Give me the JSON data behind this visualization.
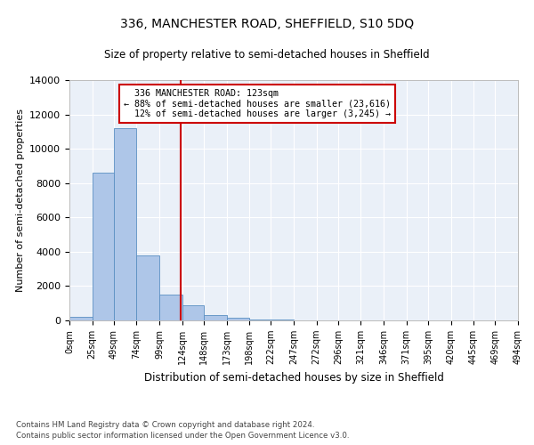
{
  "title": "336, MANCHESTER ROAD, SHEFFIELD, S10 5DQ",
  "subtitle": "Size of property relative to semi-detached houses in Sheffield",
  "xlabel": "Distribution of semi-detached houses by size in Sheffield",
  "ylabel": "Number of semi-detached properties",
  "property_label": "336 MANCHESTER ROAD: 123sqm",
  "pct_smaller": 88,
  "count_smaller": "23,616",
  "pct_larger": 12,
  "count_larger": "3,245",
  "bin_edges": [
    0,
    25,
    49,
    74,
    99,
    124,
    148,
    173,
    198,
    222,
    247,
    272,
    296,
    321,
    346,
    371,
    395,
    420,
    445,
    469,
    494
  ],
  "bin_labels": [
    "0sqm",
    "25sqm",
    "49sqm",
    "74sqm",
    "99sqm",
    "124sqm",
    "148sqm",
    "173sqm",
    "198sqm",
    "222sqm",
    "247sqm",
    "272sqm",
    "296sqm",
    "321sqm",
    "346sqm",
    "371sqm",
    "395sqm",
    "420sqm",
    "445sqm",
    "469sqm",
    "494sqm"
  ],
  "counts": [
    200,
    8600,
    11200,
    3800,
    1500,
    900,
    300,
    150,
    50,
    30,
    10,
    0,
    0,
    0,
    0,
    0,
    0,
    0,
    0,
    0
  ],
  "bar_color": "#aec6e8",
  "bar_edge_color": "#5a8fc2",
  "vline_color": "#cc0000",
  "vline_x": 123,
  "bg_color": "#eaf0f8",
  "grid_color": "#ffffff",
  "ylim": [
    0,
    14000
  ],
  "yticks": [
    0,
    2000,
    4000,
    6000,
    8000,
    10000,
    12000,
    14000
  ],
  "footer1": "Contains HM Land Registry data © Crown copyright and database right 2024.",
  "footer2": "Contains public sector information licensed under the Open Government Licence v3.0."
}
